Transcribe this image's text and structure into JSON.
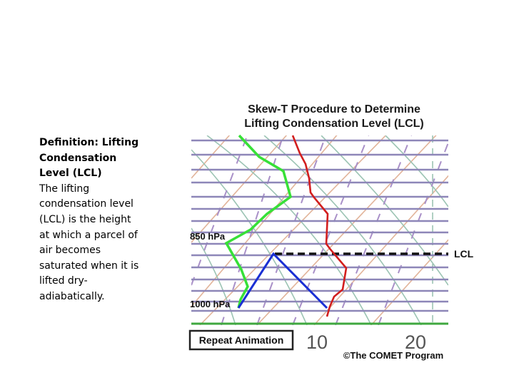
{
  "definition": {
    "heading": "Definition: Lifting Condensation Level (LCL)",
    "body": "The lifting condensation level (LCL) is the height at which a parcel of air becomes saturated when it is lifted dry-adiabatically."
  },
  "diagram": {
    "title_line1": "Skew-T Procedure to Determine",
    "title_line2": "Lifting Condensation Level (LCL)",
    "label_850": "850 hPa",
    "label_1000": "1000 hPa",
    "label_lcl": "LCL",
    "tick_10": "10",
    "tick_20": "20",
    "repeat_button": "Repeat Animation",
    "credit": "©The COMET Program",
    "colors": {
      "isobar": "#8d86b8",
      "dry_adiabat": "#e2b49a",
      "moist_adiabat": "#9cc4b4",
      "mixing_ratio": "#a990c8",
      "temperature": "#d21e1e",
      "dewpoint": "#37e037",
      "parcel": "#1a2fd4",
      "surface": "#3fa83f"
    }
  }
}
